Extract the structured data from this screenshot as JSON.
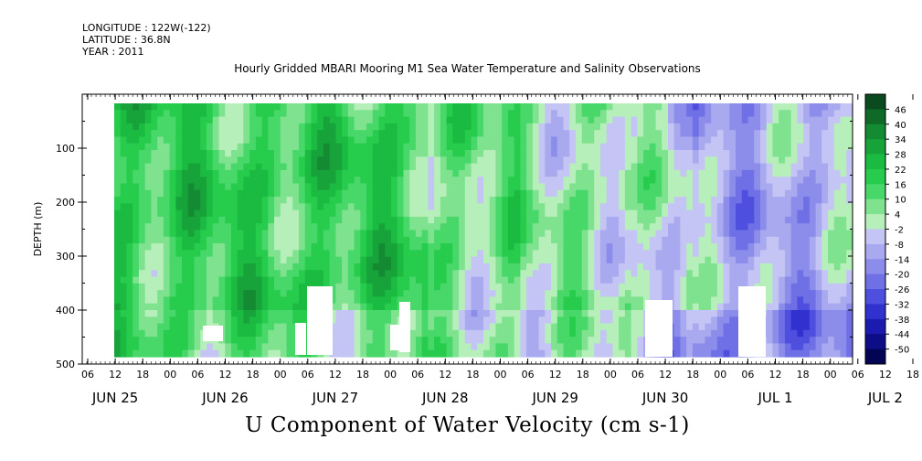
{
  "header": {
    "longitude": "LONGITUDE : 122W(-122)",
    "latitude": "LATITUDE : 36.8N",
    "year": "YEAR : 2011"
  },
  "chart_data": {
    "type": "heatmap",
    "title": "Hourly Gridded MBARI Mooring M1 Sea Water Temperature and Salinity Observations",
    "bottom_title": "U Component of Water Velocity (cm s-1)",
    "ylabel": "DEPTH (m)",
    "y_range": [
      0,
      500
    ],
    "y_inverted": true,
    "y_ticks": [
      100,
      200,
      300,
      400,
      500
    ],
    "x_hour_labels": [
      "06",
      "12",
      "18",
      "00",
      "06",
      "12",
      "18",
      "00",
      "06",
      "12",
      "18",
      "00",
      "06",
      "12",
      "18",
      "00",
      "06",
      "12",
      "18",
      "00",
      "06",
      "12",
      "18",
      "00",
      "06",
      "12",
      "18",
      "00",
      "06",
      "12",
      "18",
      "00"
    ],
    "x_date_labels": [
      "JUN 25",
      "JUN 26",
      "JUN 27",
      "JUN 28",
      "JUN 29",
      "JUN 30",
      "JUL 1",
      "JUL 2"
    ],
    "colorbar": {
      "labels": [
        "46",
        "40",
        "34",
        "28",
        "22",
        "16",
        "10",
        "4",
        "-2",
        "-8",
        "-14",
        "-20",
        "-26",
        "-32",
        "-38",
        "-44",
        "-50"
      ],
      "palette": [
        "#0b4a1e",
        "#0f6a28",
        "#148a32",
        "#17a33a",
        "#1bbb42",
        "#27cc4d",
        "#48d869",
        "#7ee28f",
        "#b7efba",
        "#c5c5f5",
        "#a9a9f0",
        "#8c8ceb",
        "#6f6fe6",
        "#4f4fdf",
        "#3131cf",
        "#1b1bb0",
        "#0d0d88",
        "#040454"
      ]
    },
    "description_days": [
      {
        "day": "JUN 25",
        "dominant": "green"
      },
      {
        "day": "JUN 26",
        "dominant": "green"
      },
      {
        "day": "JUN 27",
        "dominant": "green"
      },
      {
        "day": "JUN 28",
        "dominant": "light green"
      },
      {
        "day": "JUN 29",
        "dominant": "mixed"
      },
      {
        "day": "JUN 30",
        "dominant": "mixed"
      },
      {
        "day": "JUL 1",
        "dominant": "blue"
      },
      {
        "day": "JUL 2",
        "dominant": "blue"
      }
    ]
  }
}
